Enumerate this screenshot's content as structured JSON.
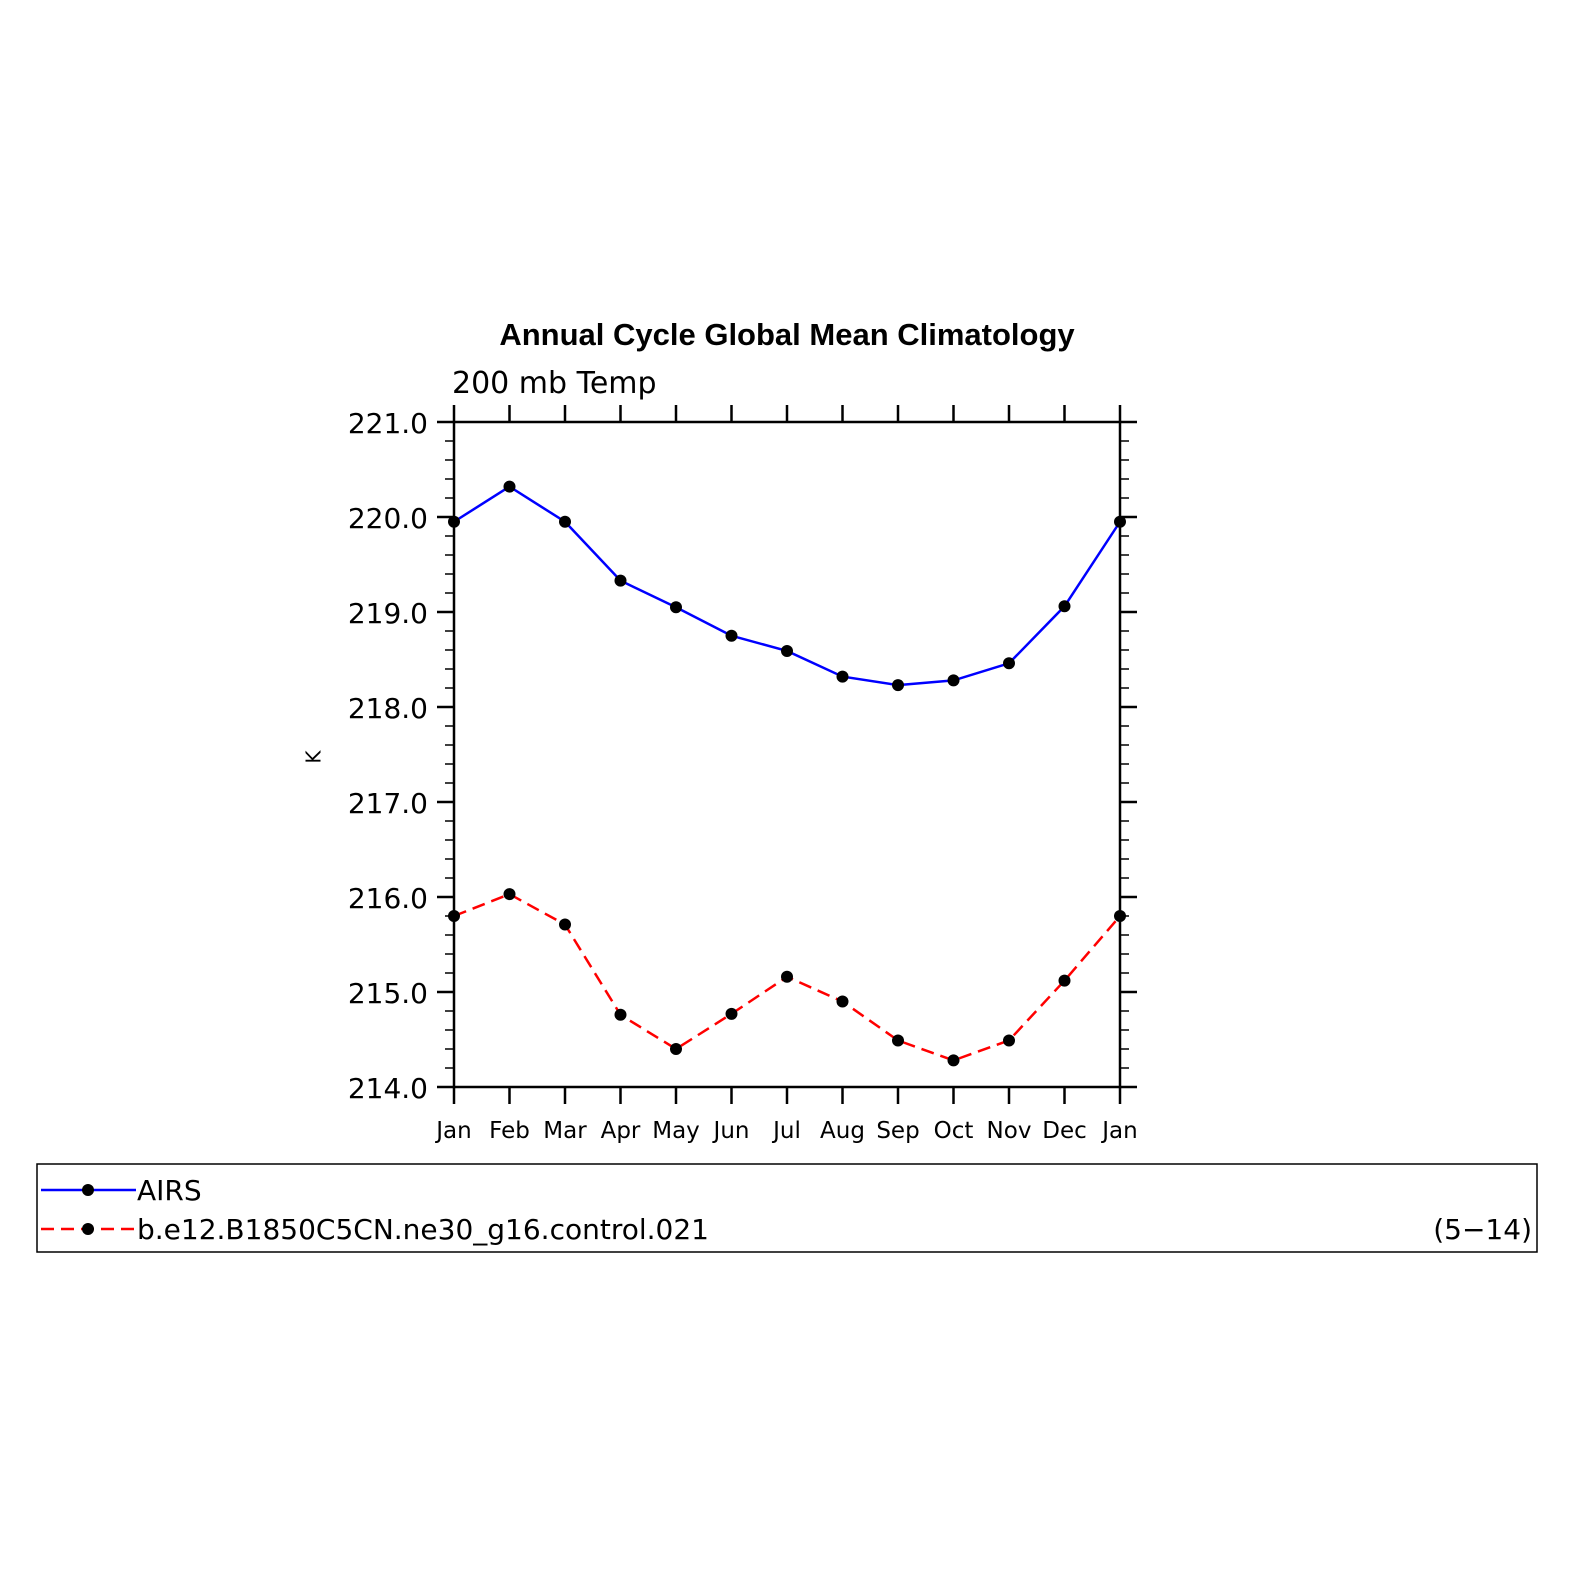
{
  "chart_data": {
    "type": "line",
    "title": "Annual Cycle Global Mean Climatology",
    "subtitle": "200 mb Temp",
    "ylabel": "K",
    "xlabel": "",
    "categories": [
      "Jan",
      "Feb",
      "Mar",
      "Apr",
      "May",
      "Jun",
      "Jul",
      "Aug",
      "Sep",
      "Oct",
      "Nov",
      "Dec",
      "Jan"
    ],
    "ylim": [
      214.0,
      221.0
    ],
    "yticks": [
      "214.0",
      "215.0",
      "216.0",
      "217.0",
      "218.0",
      "219.0",
      "220.0",
      "221.0"
    ],
    "series": [
      {
        "name": "AIRS",
        "color": "#0000ff",
        "dash": "solid",
        "values": [
          219.95,
          220.32,
          219.95,
          219.33,
          219.05,
          218.75,
          218.59,
          218.32,
          218.23,
          218.28,
          218.46,
          219.06,
          219.95
        ]
      },
      {
        "name": "b.e12.B1850C5CN.ne30_g16.control.021",
        "color": "#ff0000",
        "dash": "dashed",
        "values": [
          215.8,
          216.03,
          215.71,
          214.76,
          214.4,
          214.77,
          215.16,
          214.9,
          214.49,
          214.28,
          214.49,
          215.12,
          215.8
        ]
      }
    ],
    "marker_color": "#000000",
    "legend_placement": "bottom",
    "legend_note": "(5−14)",
    "grid": false
  }
}
